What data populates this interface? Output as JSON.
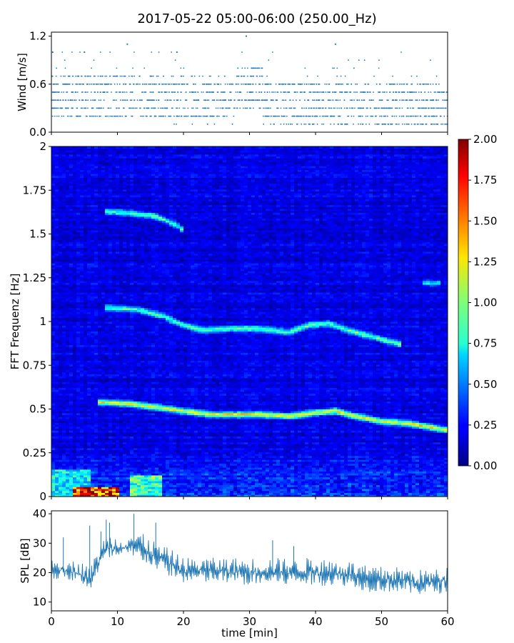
{
  "title": "2017-05-22 05:00-06:00 (250.00_Hz)",
  "chart_data": [
    {
      "type": "scatter",
      "name": "wind",
      "ylabel": "Wind [m/s]",
      "xlim": [
        0,
        60
      ],
      "ylim": [
        0,
        1.25
      ],
      "yticks": [
        0.0,
        0.6,
        1.2
      ],
      "ytick_labels": [
        "0.0",
        "0.6",
        "1.2"
      ],
      "x_tick_labels_shown": false,
      "marker_color": "#1f77b4",
      "y_levels": [
        0.1,
        0.2,
        0.3,
        0.4,
        0.5,
        0.6,
        0.7,
        0.8,
        0.9,
        1.0,
        1.1,
        1.2
      ],
      "notable_points": [
        {
          "x": 0.2,
          "y": 1.0
        },
        {
          "x": 5.0,
          "y": 1.0
        },
        {
          "x": 11.5,
          "y": 1.1
        },
        {
          "x": 19.0,
          "y": 1.0
        },
        {
          "x": 29.5,
          "y": 1.2
        },
        {
          "x": 43.0,
          "y": 1.1
        }
      ]
    },
    {
      "type": "heatmap",
      "name": "spectrogram",
      "ylabel": "FFT Frequenz [Hz]",
      "xlim": [
        0,
        60
      ],
      "ylim": [
        0,
        2
      ],
      "yticks": [
        0,
        0.25,
        0.5,
        0.75,
        1,
        1.25,
        1.5,
        1.75,
        2
      ],
      "ytick_labels": [
        "0",
        "0.25",
        "0.5",
        "0.75",
        "1",
        "1.25",
        "1.5",
        "1.75",
        "2"
      ],
      "colormap": "jet",
      "clim": [
        0,
        2
      ],
      "colorbar_ticks": [
        "0.00",
        "0.25",
        "0.50",
        "0.75",
        "1.00",
        "1.25",
        "1.50",
        "1.75",
        "2.00"
      ],
      "ridges": [
        {
          "points": [
            [
              7,
              0.54
            ],
            [
              12,
              0.53
            ],
            [
              16,
              0.51
            ],
            [
              20,
              0.49
            ],
            [
              24,
              0.47
            ],
            [
              28,
              0.47
            ],
            [
              32,
              0.47
            ],
            [
              36,
              0.46
            ],
            [
              40,
              0.48
            ],
            [
              43,
              0.49
            ],
            [
              46,
              0.46
            ],
            [
              50,
              0.43
            ],
            [
              54,
              0.42
            ],
            [
              57,
              0.4
            ],
            [
              60,
              0.38
            ]
          ],
          "intensity": 1.15
        },
        {
          "points": [
            [
              8,
              1.08
            ],
            [
              13,
              1.07
            ],
            [
              17,
              1.03
            ],
            [
              20,
              0.98
            ],
            [
              23,
              0.95
            ],
            [
              27,
              0.96
            ],
            [
              31,
              0.96
            ],
            [
              36,
              0.94
            ],
            [
              39,
              0.98
            ],
            [
              42,
              0.99
            ],
            [
              45,
              0.95
            ],
            [
              50,
              0.9
            ],
            [
              53,
              0.87
            ]
          ],
          "intensity": 0.8
        },
        {
          "points": [
            [
              8,
              1.63
            ],
            [
              12,
              1.62
            ],
            [
              16,
              1.6
            ],
            [
              19,
              1.55
            ],
            [
              20,
              1.52
            ]
          ],
          "intensity": 0.8
        },
        {
          "points": [
            [
              56,
              1.22
            ],
            [
              59,
              1.22
            ]
          ],
          "intensity": 0.55
        }
      ],
      "low_freq_hotspots": [
        {
          "x0": 3,
          "x1": 10,
          "f0": 0,
          "f1": 0.05,
          "value": 2.0
        },
        {
          "x0": 12,
          "x1": 17,
          "f0": 0,
          "f1": 0.12,
          "value": 1.1
        },
        {
          "x0": 0,
          "x1": 6,
          "f0": 0,
          "f1": 0.15,
          "value": 0.9
        }
      ]
    },
    {
      "type": "area",
      "name": "spl",
      "xlabel": "time [min]",
      "ylabel": "SPL [dB]",
      "xlim": [
        0,
        60
      ],
      "ylim": [
        7,
        41
      ],
      "xticks": [
        0,
        10,
        20,
        30,
        40,
        50,
        60
      ],
      "xtick_labels": [
        "0",
        "10",
        "20",
        "30",
        "40",
        "50",
        "60"
      ],
      "yticks": [
        10,
        20,
        30,
        40
      ],
      "ytick_labels": [
        "10",
        "20",
        "30",
        "40"
      ],
      "color": "#1f77b4",
      "band": {
        "x": [
          0,
          2,
          4,
          6,
          7,
          8,
          9,
          10,
          12,
          14,
          16,
          18,
          20,
          25,
          30,
          35,
          40,
          45,
          48,
          52,
          55,
          58,
          60
        ],
        "lower": [
          16,
          17,
          15,
          13,
          17,
          22,
          23,
          23,
          23,
          22,
          19,
          17,
          15,
          15,
          14,
          14,
          14,
          14,
          12,
          12,
          11,
          11,
          12
        ],
        "upper": [
          25,
          24,
          24,
          22,
          28,
          32,
          33,
          32,
          34,
          33,
          30,
          28,
          25,
          25,
          25,
          25,
          25,
          24,
          22,
          22,
          21,
          21,
          22
        ]
      },
      "spikes": [
        {
          "x": 1.8,
          "y": 32
        },
        {
          "x": 5.8,
          "y": 36
        },
        {
          "x": 7.5,
          "y": 34
        },
        {
          "x": 8.3,
          "y": 38
        },
        {
          "x": 8.8,
          "y": 37
        },
        {
          "x": 12.5,
          "y": 40
        },
        {
          "x": 15.8,
          "y": 37
        },
        {
          "x": 33.5,
          "y": 31
        },
        {
          "x": 36.7,
          "y": 29
        }
      ]
    }
  ]
}
